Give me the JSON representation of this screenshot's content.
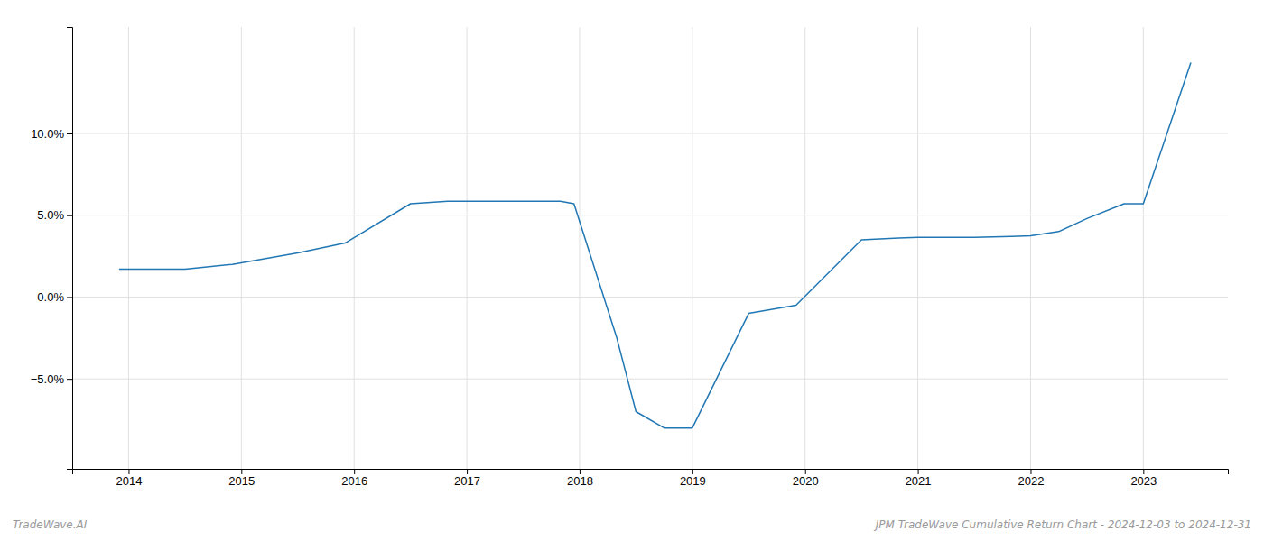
{
  "chart_data": {
    "type": "line",
    "x": [
      2013.92,
      2014.5,
      2014.92,
      2015.5,
      2015.92,
      2016.5,
      2016.83,
      2017.0,
      2017.83,
      2017.95,
      2018.33,
      2018.5,
      2018.75,
      2019.0,
      2019.5,
      2019.92,
      2020.5,
      2020.83,
      2021.0,
      2021.5,
      2021.83,
      2022.0,
      2022.25,
      2022.5,
      2022.83,
      2023.0,
      2023.42
    ],
    "values": [
      1.7,
      1.7,
      2.0,
      2.7,
      3.3,
      5.7,
      5.85,
      5.85,
      5.85,
      5.7,
      -2.5,
      -7.0,
      -8.0,
      -8.0,
      -1.0,
      -0.5,
      3.5,
      3.6,
      3.65,
      3.65,
      3.7,
      3.75,
      4.0,
      4.8,
      5.7,
      5.7,
      14.3
    ],
    "color": "#2077b4",
    "xlim": [
      2013.5,
      2023.75
    ],
    "xticks": [
      2014,
      2015,
      2016,
      2017,
      2018,
      2019,
      2020,
      2021,
      2022,
      2023
    ],
    "ylim": [
      -10.5,
      16.5
    ],
    "yticks": [
      {
        "value": -5.0,
        "label": "−5.0%"
      },
      {
        "value": 0.0,
        "label": "0.0%"
      },
      {
        "value": 5.0,
        "label": "5.0%"
      },
      {
        "value": 10.0,
        "label": "10.0%"
      }
    ],
    "grid": true,
    "annotations": [
      "TradeWave.AI",
      "JPM TradeWave Cumulative Return Chart - 2024-12-03 to 2024-12-31"
    ]
  }
}
